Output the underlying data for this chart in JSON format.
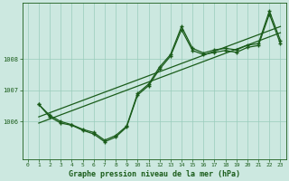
{
  "title": "Graphe pression niveau de la mer (hPa)",
  "background_color": "#cce8e0",
  "plot_bg_color": "#cce8e0",
  "line_color": "#1a5c1a",
  "grid_color": "#99ccbb",
  "text_color": "#1a5c1a",
  "xlim": [
    -0.5,
    23.5
  ],
  "ylim": [
    1004.8,
    1009.8
  ],
  "yticks": [
    1006,
    1007,
    1008
  ],
  "xticks": [
    0,
    1,
    2,
    3,
    4,
    5,
    6,
    7,
    8,
    9,
    10,
    11,
    12,
    13,
    14,
    15,
    16,
    17,
    18,
    19,
    20,
    21,
    22,
    23
  ],
  "series1_x": [
    1,
    2,
    3,
    4,
    5,
    6,
    7,
    8,
    9,
    10,
    11,
    12,
    13,
    14,
    15,
    16,
    17,
    18,
    19,
    20,
    21,
    22,
    23
  ],
  "series1_y": [
    1006.55,
    1006.2,
    1006.0,
    1005.9,
    1005.75,
    1005.65,
    1005.4,
    1005.55,
    1005.85,
    1006.9,
    1007.2,
    1007.75,
    1008.15,
    1009.05,
    1008.35,
    1008.2,
    1008.3,
    1008.35,
    1008.3,
    1008.45,
    1008.5,
    1009.55,
    1008.6
  ],
  "series2_x": [
    1,
    2,
    3,
    4,
    5,
    6,
    7,
    8,
    9,
    10,
    11,
    12,
    13,
    14,
    15,
    16,
    17,
    18,
    19,
    20,
    21,
    22,
    23
  ],
  "series2_y": [
    1006.55,
    1006.15,
    1005.95,
    1005.88,
    1005.72,
    1005.6,
    1005.35,
    1005.5,
    1005.82,
    1006.85,
    1007.15,
    1007.68,
    1008.1,
    1008.95,
    1008.28,
    1008.15,
    1008.22,
    1008.28,
    1008.22,
    1008.38,
    1008.44,
    1009.45,
    1008.5
  ],
  "trend1_x": [
    1,
    23
  ],
  "trend1_y": [
    1005.95,
    1008.85
  ],
  "trend2_x": [
    1,
    23
  ],
  "trend2_y": [
    1006.15,
    1009.05
  ],
  "xlabel_fontsize": 6,
  "ytick_fontsize": 5,
  "xtick_fontsize": 4.5
}
